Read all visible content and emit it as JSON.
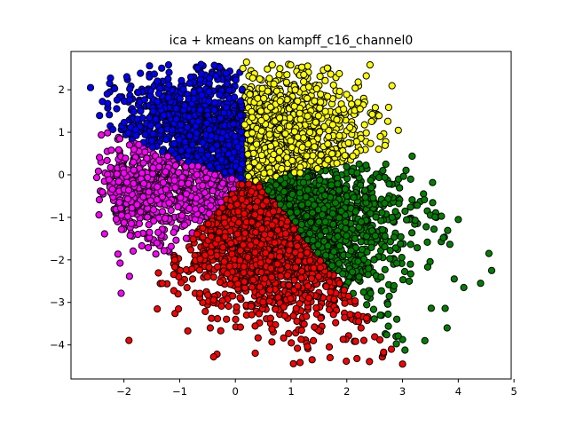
{
  "chart_data": {
    "type": "scatter",
    "title": "ica + kmeans on kampff_c16_channel0",
    "xlabel": "",
    "ylabel": "",
    "xlim": [
      -2.95,
      4.95
    ],
    "ylim": [
      -4.8,
      2.9
    ],
    "x_ticks": [
      -2,
      -1,
      0,
      1,
      2,
      3,
      4,
      5
    ],
    "y_ticks": [
      -4,
      -3,
      -2,
      -1,
      0,
      1,
      2
    ],
    "grid": false,
    "legend": "none",
    "marker": "circle",
    "marker_edge_color": "#000000",
    "clusters": [
      {
        "color": "#0000ff",
        "center": [
          -0.9,
          1.35
        ],
        "spread": [
          0.6,
          0.5
        ],
        "sample_points": [
          [
            -2.6,
            2.05
          ],
          [
            -2.3,
            1.9
          ],
          [
            -1.4,
            2.2
          ],
          [
            -0.3,
            2.55
          ],
          [
            -0.2,
            2.4
          ],
          [
            -1.7,
            1.5
          ],
          [
            -2.0,
            1.1
          ],
          [
            -1.5,
            0.8
          ],
          [
            -0.8,
            2.3
          ],
          [
            -0.5,
            1.0
          ]
        ]
      },
      {
        "color": "#ffff00",
        "center": [
          1.2,
          1.4
        ],
        "spread": [
          0.65,
          0.5
        ],
        "sample_points": [
          [
            0.2,
            2.65
          ],
          [
            0.8,
            2.5
          ],
          [
            1.5,
            2.1
          ],
          [
            2.2,
            1.7
          ],
          [
            2.6,
            0.9
          ],
          [
            0.3,
            1.0
          ],
          [
            1.9,
            0.7
          ],
          [
            0.6,
            2.2
          ]
        ]
      },
      {
        "color": "#ff00ff",
        "center": [
          -1.7,
          -0.3
        ],
        "spread": [
          0.4,
          0.45
        ],
        "sample_points": [
          [
            -2.3,
            0.55
          ],
          [
            -2.35,
            -0.15
          ],
          [
            -2.1,
            -0.8
          ],
          [
            -1.6,
            -1.4
          ],
          [
            -1.0,
            -0.3
          ],
          [
            -1.3,
            0.3
          ],
          [
            -0.5,
            -0.5
          ],
          [
            -1.9,
            0.7
          ]
        ]
      },
      {
        "color": "#ff0000",
        "center": [
          0.6,
          -1.9
        ],
        "spread": [
          0.75,
          0.6
        ],
        "sample_points": [
          [
            -0.5,
            -2.4
          ],
          [
            1.4,
            -3.9
          ],
          [
            1.7,
            -4.3
          ],
          [
            2.8,
            -4.1
          ],
          [
            3.0,
            -4.45
          ],
          [
            2.2,
            -3.3
          ],
          [
            0.0,
            -0.3
          ],
          [
            -1.1,
            -1.9
          ],
          [
            0.2,
            -3.1
          ]
        ]
      },
      {
        "color": "#008000",
        "center": [
          1.9,
          -1.1
        ],
        "spread": [
          0.85,
          0.65
        ],
        "sample_points": [
          [
            4.6,
            -2.25
          ],
          [
            4.55,
            -1.85
          ],
          [
            4.4,
            -2.55
          ],
          [
            4.1,
            -2.65
          ],
          [
            3.5,
            -0.95
          ],
          [
            3.8,
            -3.6
          ],
          [
            3.4,
            -3.9
          ],
          [
            2.7,
            0.25
          ],
          [
            0.2,
            0.0
          ],
          [
            2.6,
            -3.3
          ],
          [
            4.0,
            -1.05
          ]
        ]
      }
    ]
  }
}
